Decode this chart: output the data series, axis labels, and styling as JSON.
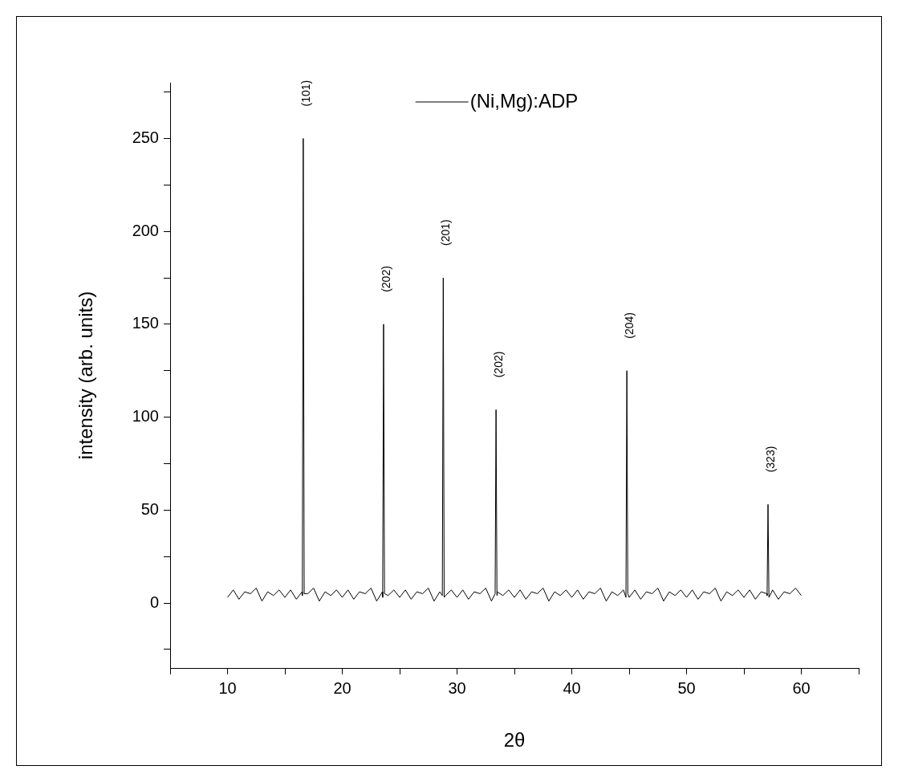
{
  "chart_data": {
    "type": "line",
    "xlabel": "2θ",
    "ylabel": "intensity (arb. units)",
    "legend": "top",
    "marker": "none",
    "line_style": "solid",
    "grid": false,
    "xlim": [
      5,
      65
    ],
    "xticks": [
      {
        "value": 5,
        "label": null
      },
      10,
      {
        "value": 15,
        "label": null
      },
      20,
      {
        "value": 25,
        "label": null
      },
      30,
      {
        "value": 35,
        "label": null
      },
      40,
      {
        "value": 45,
        "label": null
      },
      50,
      {
        "value": 55,
        "label": null
      },
      60,
      {
        "value": 65,
        "label": null
      }
    ],
    "ylim": [
      -35,
      280
    ],
    "yticks": [
      {
        "value": -25,
        "label": null
      },
      0,
      {
        "value": 25,
        "label": null
      },
      50,
      {
        "value": 75,
        "label": null
      },
      100,
      {
        "value": 125,
        "label": null
      },
      150,
      {
        "value": 175,
        "label": null
      },
      200,
      {
        "value": 225,
        "label": null
      },
      250,
      {
        "value": 275,
        "label": null
      }
    ],
    "series": [
      {
        "name": "(Ni,Mg):ADP",
        "color": "#000000",
        "x": [
          10,
          10.5,
          11,
          11.5,
          12,
          12.5,
          13,
          13.5,
          14,
          14.5,
          15,
          15.5,
          16,
          16.5,
          16.52,
          16.6,
          16.68,
          17,
          17.5,
          18,
          18.5,
          19,
          19.5,
          20,
          20.5,
          21,
          21.5,
          22,
          22.5,
          23,
          23.5,
          23.52,
          23.6,
          23.68,
          24,
          24.5,
          25,
          25.5,
          26,
          26.5,
          27,
          27.5,
          28,
          28.5,
          28.72,
          28.8,
          28.88,
          29,
          29.5,
          30,
          30.5,
          31,
          31.5,
          32,
          32.5,
          33,
          33.32,
          33.4,
          33.48,
          33.5,
          34,
          34.5,
          35,
          35.5,
          36,
          36.5,
          37,
          37.5,
          38,
          38.5,
          39,
          39.5,
          40,
          40.5,
          41,
          41.5,
          42,
          42.5,
          43,
          43.5,
          44,
          44.5,
          44.72,
          44.8,
          44.88,
          45,
          45.5,
          46,
          46.5,
          47,
          47.5,
          48,
          48.5,
          49,
          49.5,
          50,
          50.5,
          51,
          51.5,
          52,
          52.5,
          53,
          53.5,
          54,
          54.5,
          55,
          55.5,
          56,
          56.5,
          57,
          57.02,
          57.1,
          57.18,
          57.5,
          58,
          58.5,
          59,
          59.5,
          60
        ],
        "values": [
          3,
          7,
          2,
          6,
          5,
          8,
          1,
          6,
          4,
          7,
          3,
          7,
          2,
          6,
          4,
          250,
          5,
          5,
          8,
          1,
          6,
          4,
          7,
          3,
          7,
          2,
          6,
          5,
          8,
          1,
          6,
          3,
          150,
          5,
          4,
          7,
          3,
          7,
          2,
          6,
          5,
          8,
          1,
          6,
          4,
          175,
          3,
          4,
          7,
          3,
          7,
          2,
          6,
          5,
          8,
          1,
          5,
          104,
          4,
          6,
          4,
          7,
          3,
          7,
          2,
          6,
          5,
          8,
          1,
          6,
          4,
          7,
          3,
          7,
          2,
          6,
          5,
          8,
          1,
          6,
          4,
          7,
          3,
          125,
          5,
          3,
          7,
          2,
          6,
          5,
          8,
          1,
          6,
          4,
          7,
          3,
          7,
          2,
          6,
          5,
          8,
          1,
          6,
          4,
          7,
          3,
          7,
          2,
          6,
          5,
          4,
          53,
          3,
          7,
          2,
          6,
          5,
          8,
          4
        ]
      }
    ],
    "annotations": [
      {
        "text": "(101)",
        "x": 16.6,
        "y": 250
      },
      {
        "text": "(202)",
        "x": 23.6,
        "y": 150
      },
      {
        "text": "(201)",
        "x": 28.8,
        "y": 175
      },
      {
        "text": "(202)",
        "x": 33.4,
        "y": 104
      },
      {
        "text": "(204)",
        "x": 44.8,
        "y": 125
      },
      {
        "text": "(323)",
        "x": 57.1,
        "y": 53
      }
    ]
  }
}
